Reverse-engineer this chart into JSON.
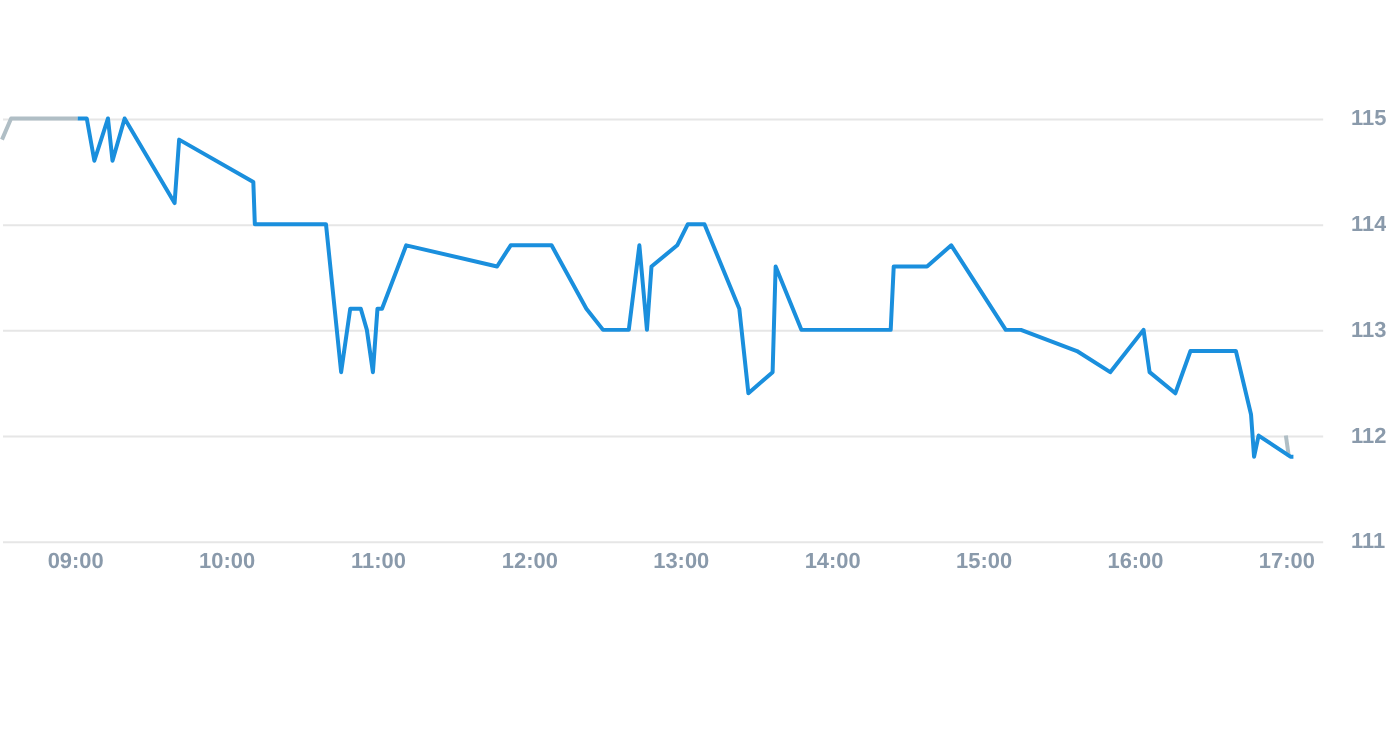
{
  "chart_data": {
    "type": "line",
    "series": [
      {
        "color": "#b0bec5",
        "x": [
          8.52,
          8.58,
          9.02
        ],
        "values": [
          114.8,
          115.0,
          115.0
        ]
      },
      {
        "color": "#b0bec5",
        "x": [
          17.0,
          17.02
        ],
        "values": [
          112.0,
          111.8
        ]
      },
      {
        "color": "#1a8fdd",
        "x": [
          9.02,
          9.08,
          9.13,
          9.22,
          9.25,
          9.33,
          9.66,
          9.69,
          10.18,
          10.19,
          10.66,
          10.76,
          10.82,
          10.89,
          10.93,
          10.97,
          11.0,
          11.03,
          11.19,
          11.79,
          11.88,
          12.15,
          12.38,
          12.49,
          12.66,
          12.73,
          12.78,
          12.81,
          12.98,
          13.05,
          13.16,
          13.39,
          13.45,
          13.61,
          13.63,
          13.8,
          14.39,
          14.41,
          14.63,
          14.79,
          15.15,
          15.25,
          15.62,
          15.84,
          16.06,
          16.1,
          16.27,
          16.37,
          16.67,
          16.77,
          16.79,
          16.82,
          17.03,
          17.05
        ],
        "values": [
          115.0,
          115.0,
          114.6,
          115.0,
          114.6,
          115.0,
          114.2,
          114.8,
          114.4,
          114.0,
          114.0,
          112.6,
          113.2,
          113.2,
          113.0,
          112.6,
          113.2,
          113.2,
          113.8,
          113.6,
          113.8,
          113.8,
          113.2,
          113.0,
          113.0,
          113.8,
          113.0,
          113.6,
          113.8,
          114.0,
          114.0,
          113.2,
          112.4,
          112.6,
          113.6,
          113.0,
          113.0,
          113.6,
          113.6,
          113.8,
          113.0,
          113.0,
          112.8,
          112.6,
          113.0,
          112.6,
          112.4,
          112.8,
          112.8,
          112.2,
          111.8,
          112.0,
          111.8,
          111.8
        ]
      }
    ],
    "xlim": [
      8.52,
      17.24
    ],
    "xticks": [
      {
        "value": 9,
        "label": "09:00"
      },
      {
        "value": 10,
        "label": "10:00"
      },
      {
        "value": 11,
        "label": "11:00"
      },
      {
        "value": 12,
        "label": "12:00"
      },
      {
        "value": 13,
        "label": "13:00"
      },
      {
        "value": 14,
        "label": "14:00"
      },
      {
        "value": 15,
        "label": "15:00"
      },
      {
        "value": 16,
        "label": "16:00"
      },
      {
        "value": 17,
        "label": "17:00"
      }
    ],
    "ylim": [
      111,
      115
    ],
    "yticks": [
      111,
      112,
      113,
      114,
      115
    ],
    "grid": "y",
    "marker": "none",
    "line_style": "solid"
  }
}
